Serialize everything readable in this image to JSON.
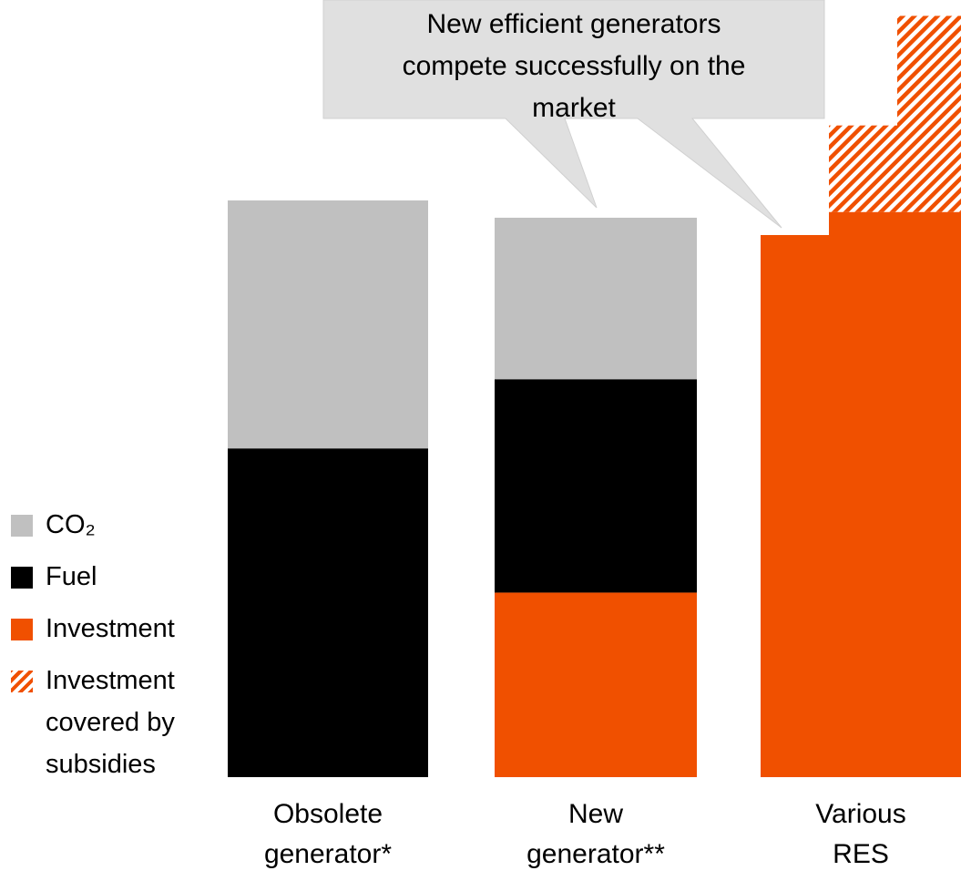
{
  "chart_data": {
    "type": "stacked-bar",
    "annotation": "New efficient generators compete successfully on the market",
    "categories": [
      "Obsolete\ngenerator*",
      "New\ngenerator**",
      "Various\nRES",
      null,
      null
    ],
    "series": [
      {
        "name": "CO₂",
        "color": "#c0c0c0",
        "values": [
          43,
          28,
          0,
          0,
          0
        ]
      },
      {
        "name": "Fuel",
        "color": "#000000",
        "values": [
          57,
          37,
          0,
          0,
          0
        ]
      },
      {
        "name": "Investment",
        "color": "#f05000",
        "values": [
          0,
          32,
          94,
          98,
          98
        ]
      },
      {
        "name": "Investment covered by subsidies",
        "color": "#f05000",
        "hatched": true,
        "values": [
          0,
          0,
          0,
          15,
          34
        ]
      }
    ],
    "legend": "left"
  }
}
